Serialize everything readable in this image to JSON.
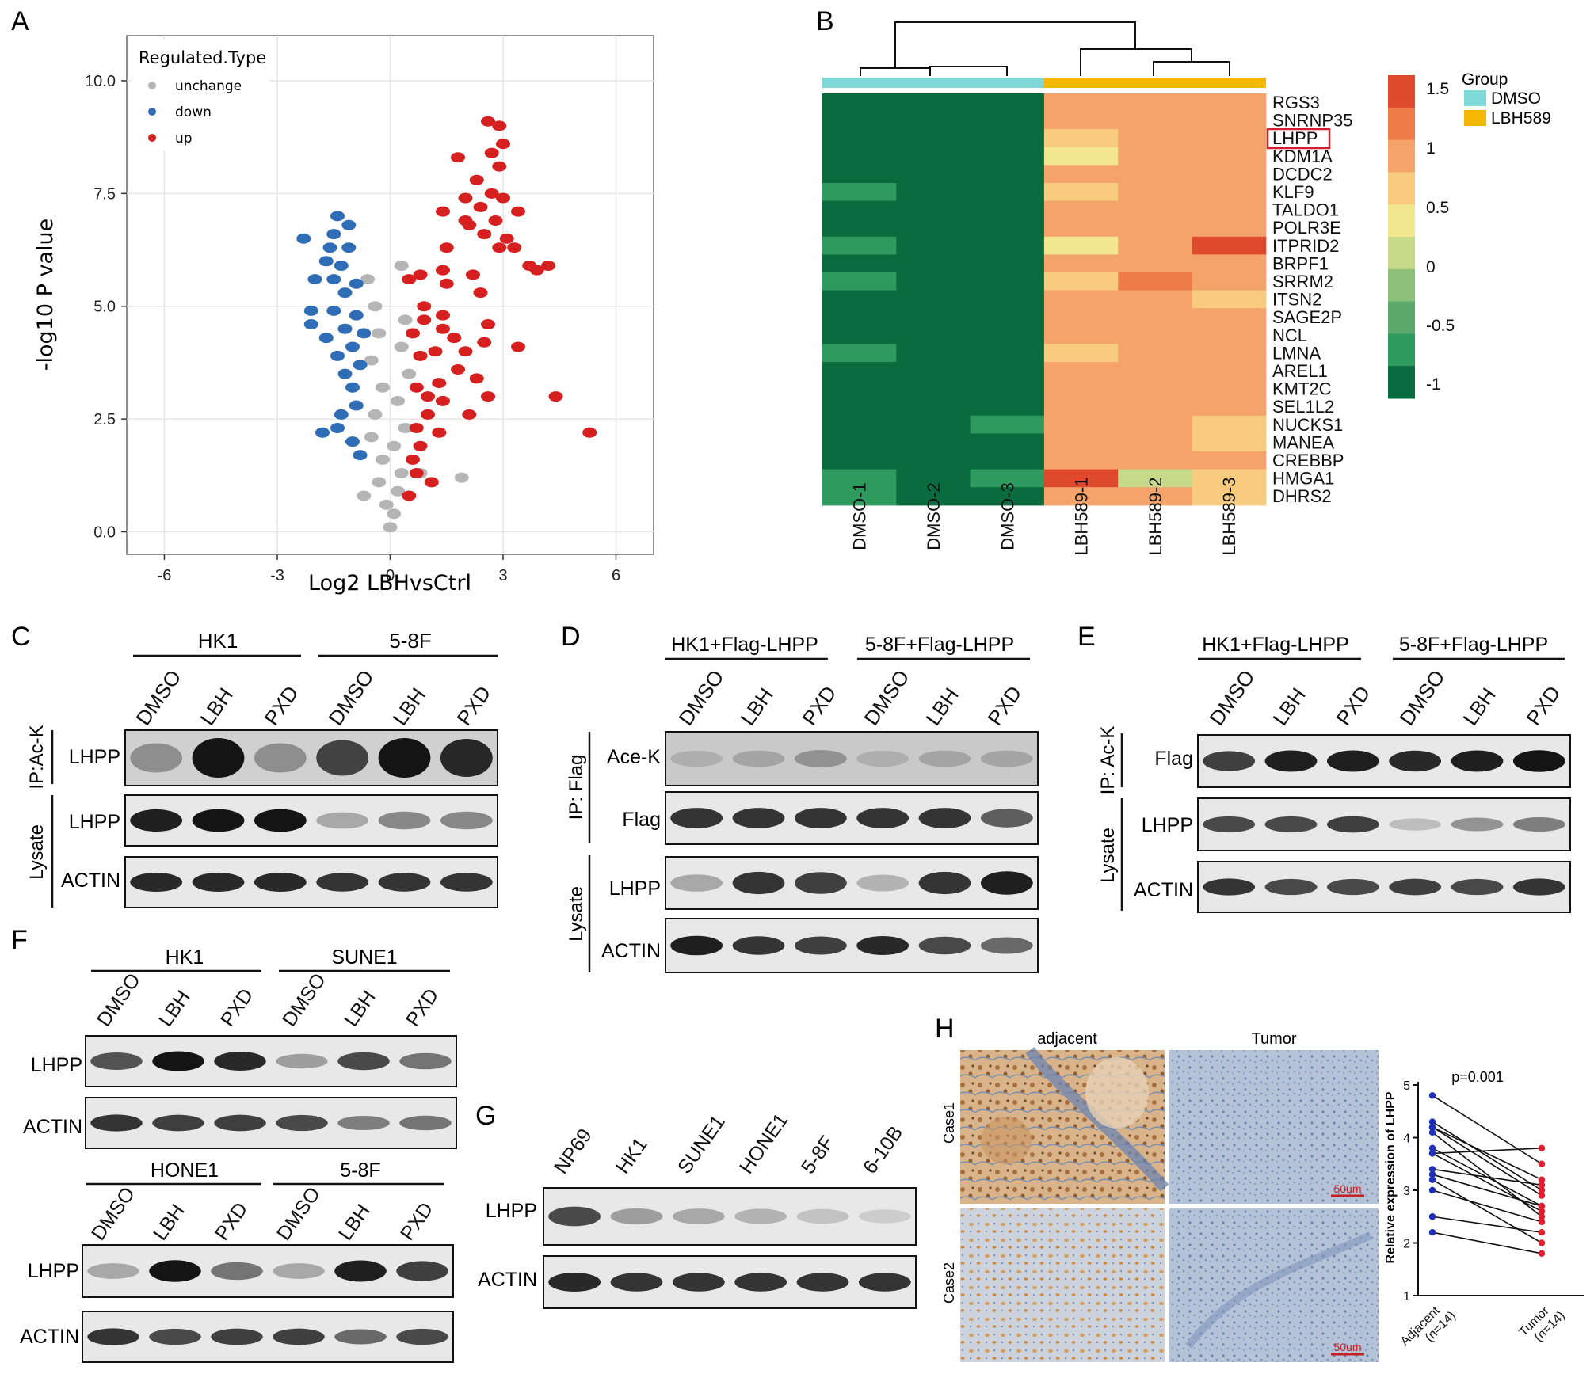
{
  "panels": {
    "A": {
      "letter": "A",
      "xlabel": "Log2 LBHvsCtrl",
      "ylabel": "-log10 P value",
      "legend_title": "Regulated.Type",
      "legend": [
        {
          "key": "unchange",
          "label": "unchange",
          "color": "#b5b5b5"
        },
        {
          "key": "down",
          "label": "down",
          "color": "#2f6eb6"
        },
        {
          "key": "up",
          "label": "up",
          "color": "#d62020"
        }
      ],
      "x_ticks": [
        "-6",
        "-3",
        "0",
        "3",
        "6"
      ],
      "y_ticks": [
        "0.0",
        "2.5",
        "5.0",
        "7.5",
        "10.0"
      ]
    },
    "B": {
      "letter": "B",
      "genes": [
        "RGS3",
        "SNRNP35",
        "LHPP",
        "KDM1A",
        "DCDC2",
        "KLF9",
        "TALDO1",
        "POLR3E",
        "ITPRID2",
        "BRPF1",
        "SRRM2",
        "ITSN2",
        "SAGE2P",
        "NCL",
        "LMNA",
        "AREL1",
        "KMT2C",
        "SEL1L2",
        "NUCKS1",
        "MANEA",
        "CREBBP",
        "HMGA1",
        "DHRS2"
      ],
      "highlighted_gene": "LHPP",
      "samples": [
        "DMSO-1",
        "DMSO-2",
        "DMSO-3",
        "LBH589-1",
        "LBH589-2",
        "LBH589-3"
      ],
      "group_title": "Group",
      "groups": [
        {
          "label": "DMSO",
          "color": "#7fd8d8"
        },
        {
          "label": "LBH589",
          "color": "#f5b800"
        }
      ],
      "scale_labels": [
        "1.5",
        "1",
        "0.5",
        "0",
        "-0.5",
        "-1"
      ],
      "scale_colors": [
        "#e04a2c",
        "#ef7b48",
        "#f4a46a",
        "#f8cb7e",
        "#f2e78e",
        "#c6d98a",
        "#8cc07a",
        "#5ca86a",
        "#2e9a5e",
        "#0a6b3f"
      ]
    },
    "C": {
      "letter": "C",
      "groups": [
        "HK1",
        "5-8F"
      ],
      "lanes": [
        "DMSO",
        "LBH",
        "PXD",
        "DMSO",
        "LBH",
        "PXD"
      ],
      "side_labels": [
        "IP:Ac-K",
        "Lysate"
      ],
      "rows": [
        "LHPP",
        "LHPP",
        "ACTIN"
      ]
    },
    "D": {
      "letter": "D",
      "groups": [
        "HK1+Flag-LHPP",
        "5-8F+Flag-LHPP"
      ],
      "lanes": [
        "DMSO",
        "LBH",
        "PXD",
        "DMSO",
        "LBH",
        "PXD"
      ],
      "side_labels": [
        "IP: Flag",
        "Lysate"
      ],
      "rows": [
        "Ace-K",
        "Flag",
        "LHPP",
        "ACTIN"
      ]
    },
    "E": {
      "letter": "E",
      "groups": [
        "HK1+Flag-LHPP",
        "5-8F+Flag-LHPP"
      ],
      "lanes": [
        "DMSO",
        "LBH",
        "PXD",
        "DMSO",
        "LBH",
        "PXD"
      ],
      "side_labels": [
        "IP: Ac-K",
        "Lysate"
      ],
      "rows": [
        "Flag",
        "LHPP",
        "ACTIN"
      ]
    },
    "F": {
      "letter": "F",
      "top_groups": [
        "HK1",
        "SUNE1"
      ],
      "bottom_groups": [
        "HONE1",
        "5-8F"
      ],
      "lanes": [
        "DMSO",
        "LBH",
        "PXD",
        "DMSO",
        "LBH",
        "PXD"
      ],
      "rows": [
        "LHPP",
        "ACTIN"
      ]
    },
    "G": {
      "letter": "G",
      "lanes": [
        "NP69",
        "HK1",
        "SUNE1",
        "HONE1",
        "5-8F",
        "6-10B"
      ],
      "rows": [
        "LHPP",
        "ACTIN"
      ]
    },
    "H": {
      "letter": "H",
      "col_titles": [
        "adjacent",
        "Tumor"
      ],
      "row_titles": [
        "Case1",
        "Case2"
      ],
      "scale_bar": "50um",
      "pvalue": "p=0.001",
      "ylabel": "Relative  expression of LHPP",
      "x_labels": [
        "Adjacent",
        "Tumor"
      ],
      "n_labels": [
        "(n=14)",
        "(n=14)"
      ],
      "y_ticks": [
        "1",
        "2",
        "3",
        "4",
        "5"
      ]
    }
  },
  "chart_data": [
    {
      "panel": "A",
      "type": "scatter",
      "title": "",
      "xlabel": "Log2 LBHvsCtrl",
      "ylabel": "-log10 P value",
      "xlim": [
        -7,
        7
      ],
      "ylim": [
        -0.5,
        11
      ],
      "legend_title": "Regulated.Type",
      "legend_position": "top-left",
      "series": [
        {
          "name": "up",
          "points": [
            [
              2.6,
              9.1
            ],
            [
              2.9,
              9.0
            ],
            [
              3.0,
              8.6
            ],
            [
              2.7,
              8.4
            ],
            [
              1.8,
              8.3
            ],
            [
              2.9,
              8.1
            ],
            [
              2.3,
              7.8
            ],
            [
              2.7,
              7.5
            ],
            [
              2.0,
              7.4
            ],
            [
              2.4,
              7.2
            ],
            [
              3.0,
              7.4
            ],
            [
              1.4,
              7.1
            ],
            [
              2.0,
              6.9
            ],
            [
              2.8,
              6.9
            ],
            [
              3.4,
              7.1
            ],
            [
              2.1,
              6.8
            ],
            [
              2.5,
              6.6
            ],
            [
              3.1,
              6.5
            ],
            [
              2.9,
              6.3
            ],
            [
              1.5,
              6.3
            ],
            [
              3.3,
              6.3
            ],
            [
              3.7,
              5.9
            ],
            [
              1.4,
              5.8
            ],
            [
              0.8,
              5.7
            ],
            [
              3.9,
              5.8
            ],
            [
              2.2,
              5.7
            ],
            [
              4.2,
              5.9
            ],
            [
              0.5,
              5.6
            ],
            [
              1.5,
              5.5
            ],
            [
              2.4,
              5.3
            ],
            [
              0.9,
              5.0
            ],
            [
              0.9,
              4.7
            ],
            [
              1.4,
              4.5
            ],
            [
              2.5,
              4.2
            ],
            [
              1.2,
              4.0
            ],
            [
              2.0,
              4.0
            ],
            [
              3.4,
              4.1
            ],
            [
              0.8,
              3.9
            ],
            [
              1.8,
              3.6
            ],
            [
              1.3,
              3.3
            ],
            [
              2.3,
              3.4
            ],
            [
              0.7,
              3.2
            ],
            [
              1.0,
              3.0
            ],
            [
              2.6,
              3.0
            ],
            [
              4.4,
              3.0
            ],
            [
              1.4,
              2.9
            ],
            [
              1.0,
              2.6
            ],
            [
              2.1,
              2.6
            ],
            [
              0.7,
              2.3
            ],
            [
              1.3,
              2.2
            ],
            [
              0.8,
              1.9
            ],
            [
              0.6,
              1.6
            ],
            [
              0.7,
              1.3
            ],
            [
              1.1,
              1.1
            ],
            [
              0.5,
              0.8
            ],
            [
              5.3,
              2.2
            ],
            [
              1.4,
              4.8
            ],
            [
              0.6,
              4.4
            ],
            [
              2.6,
              4.6
            ],
            [
              1.7,
              4.3
            ]
          ]
        },
        {
          "name": "down",
          "points": [
            [
              -1.4,
              7.0
            ],
            [
              -1.1,
              6.8
            ],
            [
              -1.5,
              6.6
            ],
            [
              -2.3,
              6.5
            ],
            [
              -1.6,
              6.3
            ],
            [
              -1.1,
              6.3
            ],
            [
              -1.7,
              6.0
            ],
            [
              -1.3,
              5.9
            ],
            [
              -2.0,
              5.6
            ],
            [
              -1.5,
              5.6
            ],
            [
              -0.9,
              5.5
            ],
            [
              -1.2,
              5.3
            ],
            [
              -2.1,
              4.9
            ],
            [
              -1.5,
              4.9
            ],
            [
              -0.9,
              4.8
            ],
            [
              -2.1,
              4.6
            ],
            [
              -1.2,
              4.5
            ],
            [
              -0.7,
              4.4
            ],
            [
              -1.7,
              4.3
            ],
            [
              -1.0,
              4.1
            ],
            [
              -1.4,
              3.9
            ],
            [
              -0.8,
              3.7
            ],
            [
              -1.2,
              3.5
            ],
            [
              -1.0,
              3.2
            ],
            [
              -0.9,
              2.8
            ],
            [
              -1.3,
              2.6
            ],
            [
              -1.4,
              2.3
            ],
            [
              -1.8,
              2.2
            ],
            [
              -1.0,
              2.0
            ],
            [
              -0.8,
              1.7
            ]
          ]
        },
        {
          "name": "unchange",
          "points": [
            [
              0.0,
              0.1
            ],
            [
              0.1,
              0.4
            ],
            [
              -0.1,
              0.6
            ],
            [
              0.2,
              0.9
            ],
            [
              -0.3,
              1.1
            ],
            [
              0.3,
              1.3
            ],
            [
              -0.2,
              1.6
            ],
            [
              0.1,
              1.9
            ],
            [
              -0.5,
              2.1
            ],
            [
              0.4,
              2.3
            ],
            [
              -0.4,
              2.6
            ],
            [
              0.2,
              2.9
            ],
            [
              -0.2,
              3.2
            ],
            [
              0.5,
              3.5
            ],
            [
              -0.5,
              3.8
            ],
            [
              0.3,
              4.1
            ],
            [
              -0.3,
              4.4
            ],
            [
              0.4,
              4.7
            ],
            [
              -0.4,
              5.0
            ],
            [
              -0.6,
              5.6
            ],
            [
              0.3,
              5.9
            ],
            [
              0.8,
              1.3
            ],
            [
              -0.7,
              0.8
            ],
            [
              1.9,
              1.2
            ]
          ]
        }
      ]
    },
    {
      "panel": "B",
      "type": "heatmap",
      "title": "",
      "rows": [
        "RGS3",
        "SNRNP35",
        "LHPP",
        "KDM1A",
        "DCDC2",
        "KLF9",
        "TALDO1",
        "POLR3E",
        "ITPRID2",
        "BRPF1",
        "SRRM2",
        "ITSN2",
        "SAGE2P",
        "NCL",
        "LMNA",
        "AREL1",
        "KMT2C",
        "SEL1L2",
        "NUCKS1",
        "MANEA",
        "CREBBP",
        "HMGA1",
        "DHRS2"
      ],
      "columns": [
        "DMSO-1",
        "DMSO-2",
        "DMSO-3",
        "LBH589-1",
        "LBH589-2",
        "LBH589-3"
      ],
      "values": [
        [
          -1.1,
          -1.1,
          -1.1,
          1.0,
          1.0,
          1.0
        ],
        [
          -1.1,
          -1.1,
          -1.1,
          1.0,
          1.0,
          1.0
        ],
        [
          -1.1,
          -1.1,
          -1.1,
          0.7,
          1.0,
          1.0
        ],
        [
          -1.1,
          -1.1,
          -1.1,
          0.4,
          1.0,
          1.0
        ],
        [
          -1.1,
          -1.1,
          -1.1,
          1.0,
          1.0,
          1.0
        ],
        [
          -0.8,
          -1.1,
          -1.1,
          0.7,
          1.0,
          1.0
        ],
        [
          -1.1,
          -1.1,
          -1.1,
          1.0,
          1.0,
          1.0
        ],
        [
          -1.1,
          -1.1,
          -1.1,
          1.0,
          1.0,
          1.0
        ],
        [
          -0.8,
          -1.1,
          -1.1,
          0.4,
          1.0,
          1.4
        ],
        [
          -1.1,
          -1.1,
          -1.1,
          1.0,
          1.0,
          1.0
        ],
        [
          -0.8,
          -1.1,
          -1.1,
          0.7,
          1.2,
          1.0
        ],
        [
          -1.1,
          -1.1,
          -1.1,
          1.0,
          1.0,
          0.7
        ],
        [
          -1.1,
          -1.1,
          -1.1,
          1.0,
          1.0,
          1.0
        ],
        [
          -1.1,
          -1.1,
          -1.1,
          1.0,
          1.0,
          1.0
        ],
        [
          -0.8,
          -1.1,
          -1.1,
          0.7,
          1.0,
          1.0
        ],
        [
          -1.1,
          -1.1,
          -1.1,
          1.0,
          1.0,
          1.0
        ],
        [
          -1.1,
          -1.1,
          -1.1,
          1.0,
          1.0,
          1.0
        ],
        [
          -1.1,
          -1.1,
          -1.1,
          1.0,
          1.0,
          1.0
        ],
        [
          -1.1,
          -1.1,
          -0.8,
          1.0,
          1.0,
          0.7
        ],
        [
          -1.1,
          -1.1,
          -1.1,
          1.0,
          1.0,
          0.7
        ],
        [
          -1.1,
          -1.1,
          -1.1,
          1.0,
          1.0,
          1.0
        ],
        [
          -0.8,
          -1.1,
          -0.8,
          1.4,
          0.1,
          0.7
        ],
        [
          -0.8,
          -1.1,
          -1.1,
          1.0,
          1.0,
          0.7
        ]
      ],
      "color_scale": [
        -1,
        1.5
      ]
    },
    {
      "panel": "H",
      "type": "line",
      "title": "",
      "xlabel": "",
      "ylabel": "Relative  expression of LHPP",
      "categories": [
        "Adjacent",
        "Tumor"
      ],
      "ylim": [
        1,
        5
      ],
      "pvalue": "p=0.001",
      "pairs": [
        [
          4.8,
          3.5
        ],
        [
          4.3,
          3.0
        ],
        [
          4.2,
          2.9
        ],
        [
          4.2,
          3.2
        ],
        [
          4.1,
          2.5
        ],
        [
          3.8,
          2.7
        ],
        [
          3.7,
          3.8
        ],
        [
          3.7,
          2.6
        ],
        [
          3.4,
          3.1
        ],
        [
          3.3,
          2.7
        ],
        [
          3.2,
          2.0
        ],
        [
          3.0,
          2.4
        ],
        [
          2.5,
          2.2
        ],
        [
          2.2,
          1.8
        ]
      ]
    }
  ]
}
